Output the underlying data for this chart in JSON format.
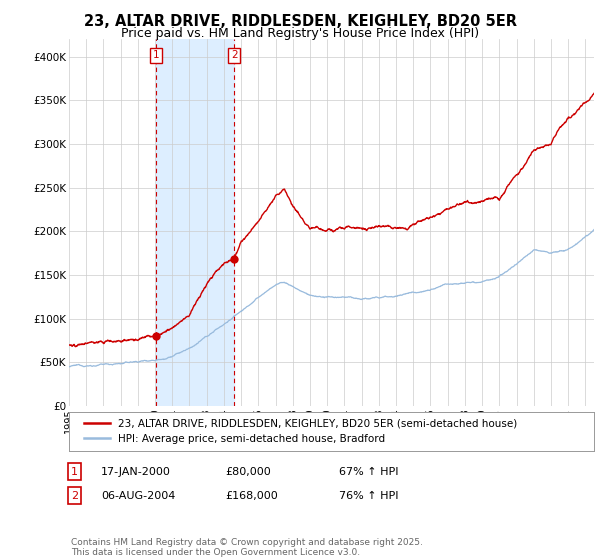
{
  "title": "23, ALTAR DRIVE, RIDDLESDEN, KEIGHLEY, BD20 5ER",
  "subtitle": "Price paid vs. HM Land Registry's House Price Index (HPI)",
  "ylim": [
    0,
    420000
  ],
  "yticks": [
    0,
    50000,
    100000,
    150000,
    200000,
    250000,
    300000,
    350000,
    400000
  ],
  "ytick_labels": [
    "£0",
    "£50K",
    "£100K",
    "£150K",
    "£200K",
    "£250K",
    "£300K",
    "£350K",
    "£400K"
  ],
  "house_color": "#cc0000",
  "hpi_color": "#99bbdd",
  "shade_color": "#ddeeff",
  "purchase1_date": 2000.05,
  "purchase1_price": 80000,
  "purchase2_date": 2004.59,
  "purchase2_price": 168000,
  "legend_house": "23, ALTAR DRIVE, RIDDLESDEN, KEIGHLEY, BD20 5ER (semi-detached house)",
  "legend_hpi": "HPI: Average price, semi-detached house, Bradford",
  "background_color": "#ffffff",
  "grid_color": "#cccccc",
  "title_fontsize": 10.5,
  "subtitle_fontsize": 9,
  "tick_fontsize": 7.5,
  "legend_fontsize": 7.5,
  "annot_fontsize": 8,
  "footnote_fontsize": 6.5
}
